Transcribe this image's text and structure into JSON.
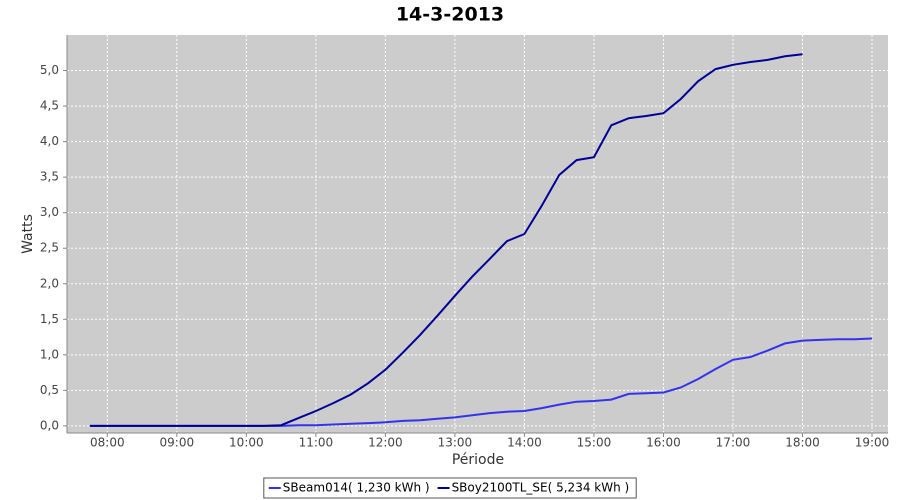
{
  "chart_data": {
    "type": "line",
    "title": "14-3-2013",
    "x_label": "Période",
    "y_label": "Watts",
    "x": [
      7.75,
      8,
      8.25,
      8.5,
      8.75,
      9,
      9.25,
      9.5,
      9.75,
      10,
      10.25,
      10.5,
      10.75,
      11,
      11.25,
      11.5,
      11.75,
      12,
      12.25,
      12.5,
      12.75,
      13,
      13.25,
      13.5,
      13.75,
      14,
      14.25,
      14.5,
      14.75,
      15,
      15.25,
      15.5,
      15.75,
      16,
      16.25,
      16.5,
      16.75,
      17,
      17.25,
      17.5,
      17.75,
      18,
      18.25,
      18.5,
      18.75,
      19
    ],
    "series": [
      {
        "name": "SBeam014( 1,230 kWh )",
        "color": "#3333ee",
        "values": [
          0,
          0,
          0,
          0,
          0,
          0,
          0,
          0,
          0,
          0,
          0,
          0,
          0.01,
          0.01,
          0.02,
          0.03,
          0.04,
          0.05,
          0.07,
          0.08,
          0.1,
          0.12,
          0.15,
          0.18,
          0.2,
          0.21,
          0.25,
          0.3,
          0.34,
          0.35,
          0.37,
          0.45,
          0.46,
          0.47,
          0.54,
          0.66,
          0.8,
          0.93,
          0.97,
          1.06,
          1.16,
          1.2,
          1.21,
          1.22,
          1.22,
          1.23
        ]
      },
      {
        "name": "SBoy2100TL_SE( 5,234 kWh )",
        "color": "#000099",
        "values": [
          0,
          0,
          0,
          0,
          0,
          0,
          0,
          0,
          0,
          0,
          0,
          0.01,
          0.11,
          0.21,
          0.32,
          0.44,
          0.6,
          0.79,
          1.03,
          1.28,
          1.55,
          1.83,
          2.1,
          2.35,
          2.6,
          2.7,
          3.1,
          3.53,
          3.74,
          3.78,
          4.23,
          4.33,
          4.36,
          4.4,
          4.6,
          4.85,
          5.02,
          5.08,
          5.12,
          5.15,
          5.2,
          5.23,
          null,
          null,
          null,
          null
        ]
      }
    ],
    "xlim": [
      7.42,
      19.23
    ],
    "xticks": [
      {
        "value": 8,
        "label": "08:00"
      },
      {
        "value": 9,
        "label": "09:00"
      },
      {
        "value": 10,
        "label": "10:00"
      },
      {
        "value": 11,
        "label": "11:00"
      },
      {
        "value": 12,
        "label": "12:00"
      },
      {
        "value": 13,
        "label": "13:00"
      },
      {
        "value": 14,
        "label": "14:00"
      },
      {
        "value": 15,
        "label": "15:00"
      },
      {
        "value": 16,
        "label": "16:00"
      },
      {
        "value": 17,
        "label": "17:00"
      },
      {
        "value": 18,
        "label": "18:00"
      },
      {
        "value": 19,
        "label": "19:00"
      }
    ],
    "ylim": [
      -0.1,
      5.5
    ],
    "yticks": [
      {
        "value": 0,
        "label": "0,0"
      },
      {
        "value": 0.5,
        "label": "0,5"
      },
      {
        "value": 1,
        "label": "1,0"
      },
      {
        "value": 1.5,
        "label": "1,5"
      },
      {
        "value": 2,
        "label": "2,0"
      },
      {
        "value": 2.5,
        "label": "2,5"
      },
      {
        "value": 3,
        "label": "3,0"
      },
      {
        "value": 3.5,
        "label": "3,5"
      },
      {
        "value": 4,
        "label": "4,0"
      },
      {
        "value": 4.5,
        "label": "4,5"
      },
      {
        "value": 5,
        "label": "5,0"
      }
    ],
    "grid": true,
    "plot_background": "#cccccc",
    "legend": "bottom"
  }
}
